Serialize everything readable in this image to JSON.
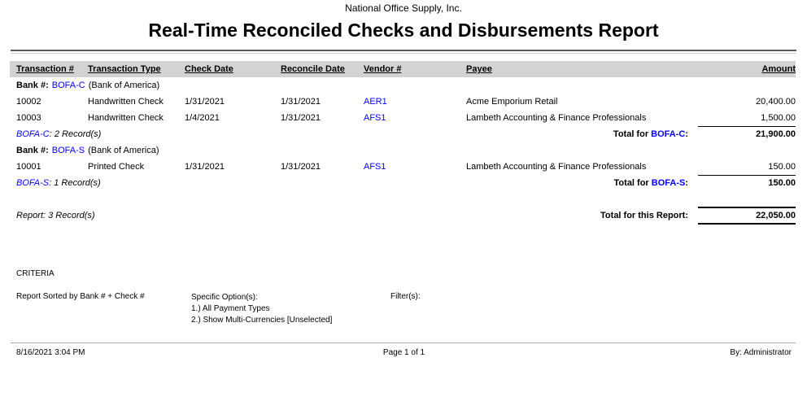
{
  "colors": {
    "link_blue": "#0000ff",
    "header_band": "#d3d3d3"
  },
  "header": {
    "company": "National Office Supply, Inc.",
    "title": "Real-Time Reconciled Checks and Disbursements Report"
  },
  "table": {
    "columns": [
      "Transaction #",
      "Transaction Type",
      "Check Date",
      "Reconcile Date",
      "Vendor #",
      "Payee",
      "Amount"
    ],
    "groups": [
      {
        "bank_label": "Bank #:",
        "bank_code": "BOFA-C",
        "bank_name": "(Bank of America)",
        "rows": [
          {
            "transaction_no": "10002",
            "transaction_type": "Handwritten Check",
            "check_date": "1/31/2021",
            "reconcile_date": "1/31/2021",
            "vendor_no": "AER1",
            "payee": "Acme Emporium Retail",
            "amount": "20,400.00"
          },
          {
            "transaction_no": "10003",
            "transaction_type": "Handwritten Check",
            "check_date": "1/4/2021",
            "reconcile_date": "1/31/2021",
            "vendor_no": "AFS1",
            "payee": "Lambeth Accounting & Finance Professionals",
            "amount": "1,500.00"
          }
        ],
        "records_suffix": ": 2 Record(s)",
        "total_prefix": "Total for ",
        "total_colon": ":",
        "total_amount": "21,900.00"
      },
      {
        "bank_label": "Bank #:",
        "bank_code": "BOFA-S",
        "bank_name": "(Bank of America)",
        "rows": [
          {
            "transaction_no": "10001",
            "transaction_type": "Printed Check",
            "check_date": "1/31/2021",
            "reconcile_date": "1/31/2021",
            "vendor_no": "AFS1",
            "payee": "Lambeth Accounting & Finance Professionals",
            "amount": "150.00"
          }
        ],
        "records_suffix": ": 1 Record(s)",
        "total_prefix": "Total for ",
        "total_colon": ":",
        "total_amount": "150.00"
      }
    ],
    "summary": {
      "records": "Report: 3 Record(s)",
      "total_label": "Total for this Report:",
      "total_amount": "22,050.00"
    }
  },
  "criteria": {
    "heading": "CRITERIA",
    "sorted_by": "Report Sorted by Bank # + Check #",
    "specific_options_label": "Specific Option(s):",
    "specific_options": [
      "1.) All Payment Types",
      "2.) Show Multi-Currencies [Unselected]"
    ],
    "filters_label": "Filter(s):"
  },
  "footer": {
    "datetime": "8/16/2021 3:04 PM",
    "page": "Page 1 of 1",
    "by": "By: Administrator"
  }
}
